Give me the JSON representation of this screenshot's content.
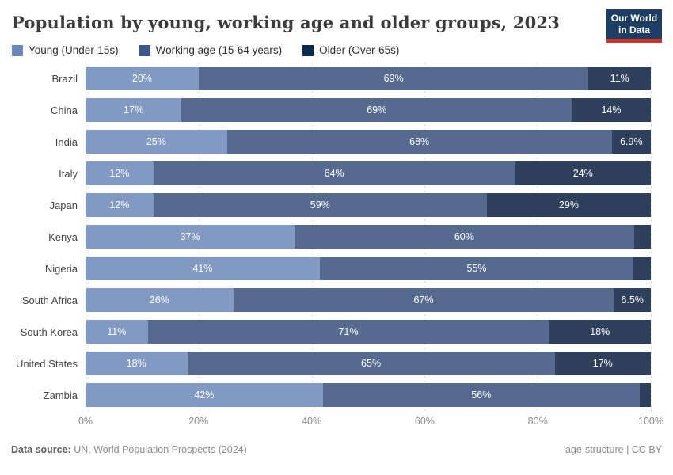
{
  "header": {
    "title": "Population by young, working age and older groups, 2023",
    "logo": {
      "line1": "Our World",
      "line2": "in Data",
      "bg_color": "#1d3d63",
      "strip_color": "#c9362e"
    }
  },
  "legend": {
    "items": [
      {
        "label": "Young (Under-15s)",
        "color": "#6d88b8"
      },
      {
        "label": "Working age (15-64 years)",
        "color": "#3d568b"
      },
      {
        "label": "Older (Over-65s)",
        "color": "#0d2a4e"
      }
    ]
  },
  "chart_data": {
    "type": "bar",
    "orientation": "horizontal",
    "stacked": true,
    "title": "Population by young, working age and older groups, 2023",
    "categories": [
      "Brazil",
      "China",
      "India",
      "Italy",
      "Japan",
      "Kenya",
      "Nigeria",
      "South Africa",
      "South Korea",
      "United States",
      "Zambia"
    ],
    "series": [
      {
        "name": "Young (Under-15s)",
        "bar_color": "#8299c1",
        "values": [
          20,
          17,
          25,
          12,
          12,
          37,
          41,
          26,
          11,
          18,
          42
        ],
        "labels": [
          "20%",
          "17%",
          "25%",
          "12%",
          "12%",
          "37%",
          "41%",
          "26%",
          "11%",
          "18%",
          "42%"
        ]
      },
      {
        "name": "Working age (15-64 years)",
        "bar_color": "#56698f",
        "values": [
          69,
          69,
          68,
          64,
          59,
          60,
          55,
          67,
          71,
          65,
          56
        ],
        "labels": [
          "69%",
          "69%",
          "68%",
          "64%",
          "59%",
          "60%",
          "55%",
          "67%",
          "71%",
          "65%",
          "56%"
        ]
      },
      {
        "name": "Older (Over-65s)",
        "bar_color": "#2e405c",
        "values": [
          11,
          14,
          6.9,
          24,
          29,
          3,
          3,
          6.5,
          18,
          17,
          2
        ],
        "labels": [
          "11%",
          "14%",
          "6.9%",
          "24%",
          "29%",
          "",
          "",
          "6.5%",
          "18%",
          "17%",
          ""
        ]
      }
    ],
    "xlim": [
      0,
      100
    ],
    "x_ticks": [
      "0%",
      "20%",
      "40%",
      "60%",
      "80%",
      "100%"
    ],
    "grid": true,
    "legend_position": "top"
  },
  "footer": {
    "source_label": "Data source:",
    "source_text": " UN, World Population Prospects (2024)",
    "slug": "age-structure",
    "separator": " | ",
    "license": "CC BY"
  }
}
